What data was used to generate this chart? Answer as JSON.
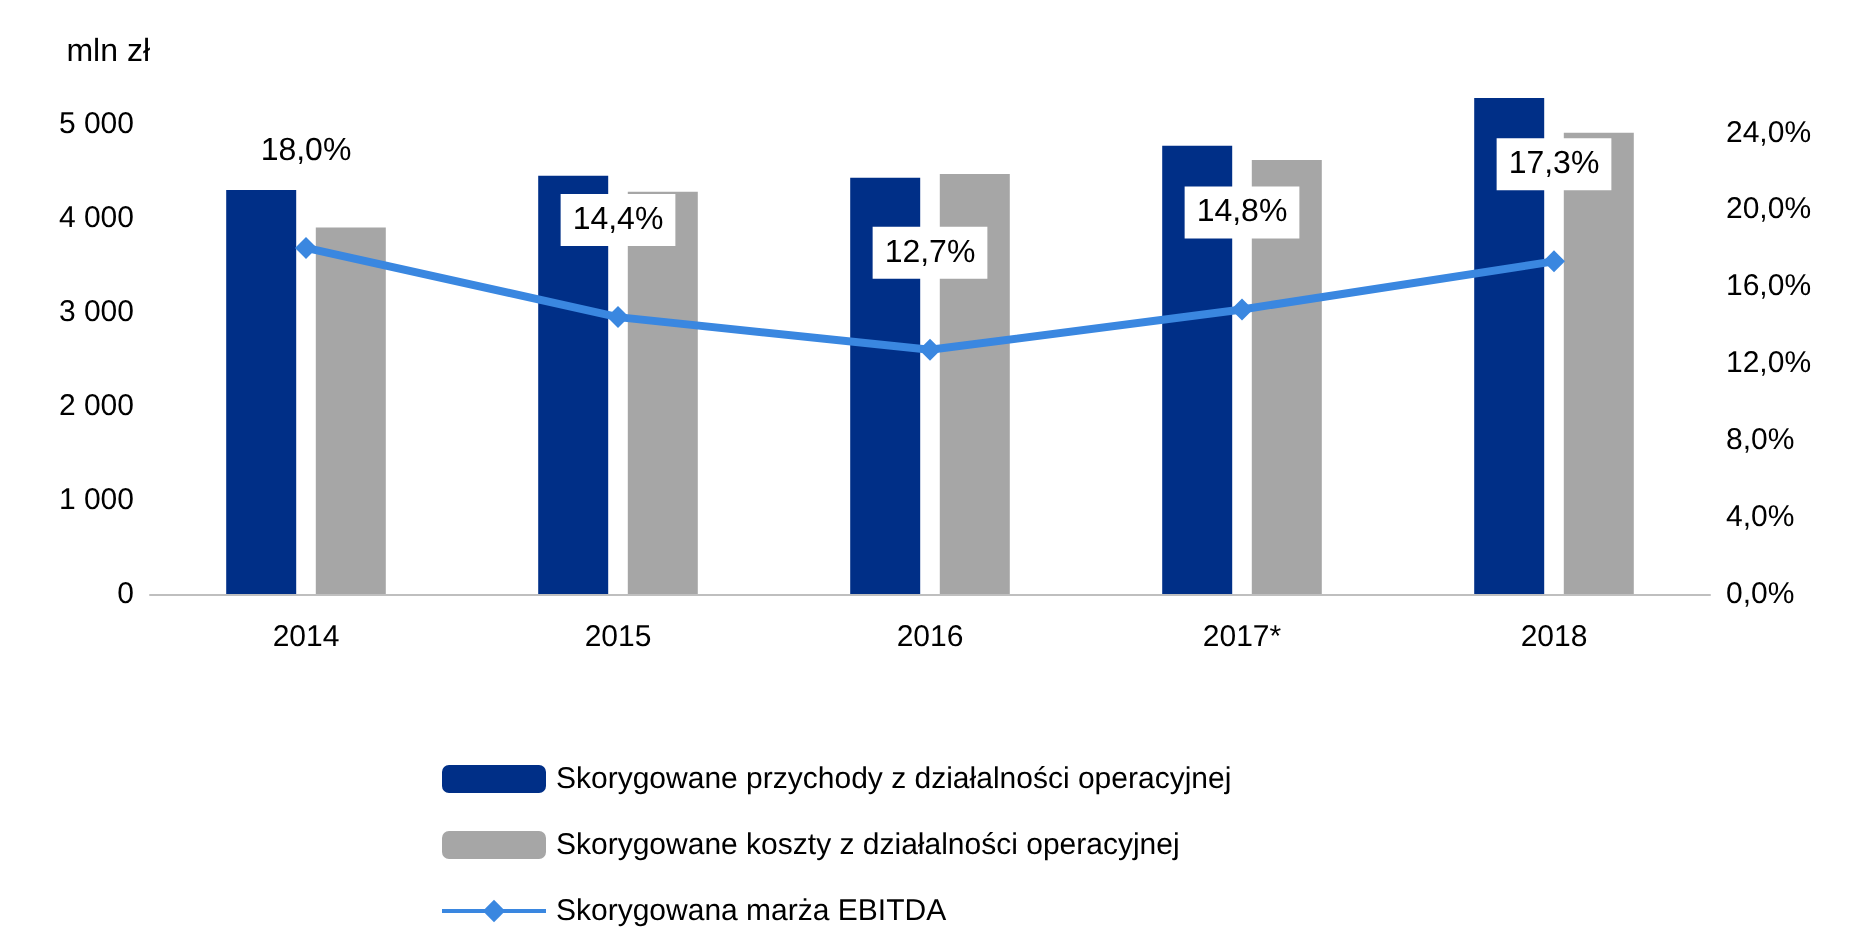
{
  "chart_data": {
    "type": "bar",
    "ylabel": "mln zł",
    "categories": [
      "2014",
      "2015",
      "2016",
      "2017*",
      "2018"
    ],
    "series": [
      {
        "name": "Skorygowane przychody z działalności operacyjnej",
        "color": "#002f87",
        "values": [
          4300,
          4450,
          4430,
          4770,
          5280
        ]
      },
      {
        "name": "Skorygowane koszty z działalności operacyjnej",
        "color": "#a6a6a6",
        "values": [
          3900,
          4280,
          4470,
          4620,
          4910
        ]
      },
      {
        "name": "Skorygowana marża EBITDA",
        "type": "line",
        "axis": "y2",
        "color": "#3a87e0",
        "marker": "diamond",
        "values": [
          18.0,
          14.4,
          12.7,
          14.8,
          17.3
        ],
        "value_labels": [
          "18,0%",
          "14,4%",
          "12,7%",
          "14,8%",
          "17,3%"
        ]
      }
    ],
    "ylim": [
      0,
      5300
    ],
    "yticks": [
      0,
      {
        "value": 1000,
        "label": "1 000"
      },
      {
        "value": 2000,
        "label": "2 000"
      },
      {
        "value": 3000,
        "label": "3 000"
      },
      {
        "value": 4000,
        "label": "4 000"
      },
      {
        "value": 5000,
        "label": "5 000"
      }
    ],
    "y2lim": [
      0,
      25.9
    ],
    "y2ticks": [
      {
        "value": 0,
        "label": "0,0%"
      },
      {
        "value": 4,
        "label": "4,0%"
      },
      {
        "value": 8,
        "label": "8,0%"
      },
      {
        "value": 12,
        "label": "12,0%"
      },
      {
        "value": 16,
        "label": "16,0%"
      },
      {
        "value": 20,
        "label": "20,0%"
      },
      {
        "value": 24,
        "label": "24,0%"
      }
    ],
    "grid": false,
    "legend": "bottom"
  }
}
